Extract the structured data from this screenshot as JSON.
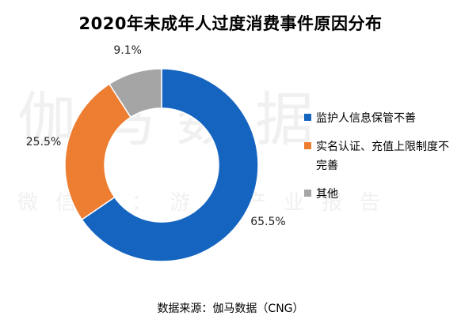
{
  "chart_data": {
    "type": "pie",
    "title": "2020年未成年人过度消费事件原因分布",
    "donut": true,
    "slices": [
      {
        "label": "监护人信息保管不善",
        "value": 65.5,
        "display": "65.5%",
        "color": "#1565c0"
      },
      {
        "label": "实名认证、充值上限制度不完善",
        "value": 25.5,
        "display": "25.5%",
        "color": "#ed7d31"
      },
      {
        "label": "其他",
        "value": 9.1,
        "display": "9.1%",
        "color": "#a5a5a5"
      }
    ],
    "legend_position": "right",
    "source": "数据来源：伽马数据（CNG）"
  },
  "watermark": {
    "main": "伽马数据",
    "sub": "微信号：游戏产业报告"
  }
}
